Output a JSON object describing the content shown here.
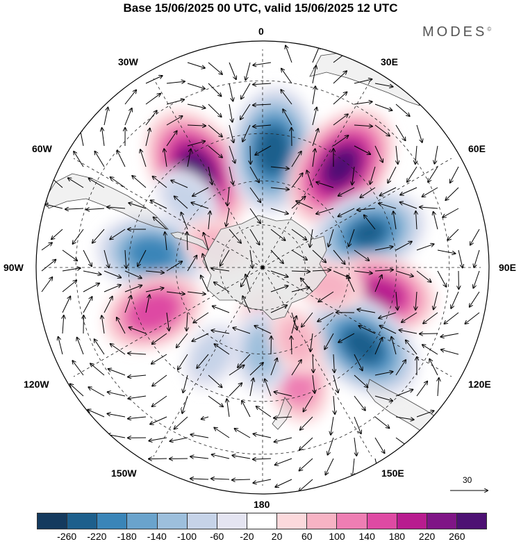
{
  "title": "Base 15/06/2025 00 UTC, valid 15/06/2025 12 UTC",
  "brand": "MODES",
  "brand_mark": "©",
  "longitude_labels": {
    "lon_0": "0",
    "lon_30e": "30E",
    "lon_60e": "60E",
    "lon_90e": "90E",
    "lon_120e": "120E",
    "lon_150e": "150E",
    "lon_180": "180",
    "lon_150w": "150W",
    "lon_120w": "120W",
    "lon_90w": "90W",
    "lon_60w": "60W",
    "lon_30w": "30W"
  },
  "reference_vector": "30",
  "colorbar": {
    "ticks": [
      "-260",
      "-220",
      "-180",
      "-140",
      "-100",
      "-60",
      "-20",
      "20",
      "60",
      "100",
      "140",
      "180",
      "220",
      "260"
    ],
    "colors": [
      "#143a5e",
      "#1d5f8c",
      "#3a85b8",
      "#6aa3cc",
      "#9dbfdc",
      "#c6d3e8",
      "#e4e4f1",
      "#ffffff",
      "#fcd9dc",
      "#f7b3c4",
      "#ee7eb3",
      "#de4aa3",
      "#b81c8f",
      "#7f1586",
      "#4d1173"
    ]
  },
  "projection": "south-polar-stereographic",
  "anomalies": [
    {
      "name": "high-30w",
      "lon": -34,
      "lat": -50,
      "value": 260
    },
    {
      "name": "low-0",
      "lon": 5,
      "lat": -50,
      "value": -250
    },
    {
      "name": "high-40e",
      "lon": 38,
      "lat": -47,
      "value": 260
    },
    {
      "name": "low-75e",
      "lon": 72,
      "lat": -52,
      "value": -220
    },
    {
      "name": "high-105e",
      "lon": 103,
      "lat": -49,
      "value": 200
    },
    {
      "name": "low-130e",
      "lon": 128,
      "lat": -47,
      "value": -240
    },
    {
      "name": "high-160e",
      "lon": 163,
      "lat": -50,
      "value": 120
    },
    {
      "name": "low-90w",
      "lon": -83,
      "lat": -52,
      "value": -200
    },
    {
      "name": "high-110w",
      "lon": -112,
      "lat": -50,
      "value": 170
    },
    {
      "name": "low-150w",
      "lon": -150,
      "lat": -55,
      "value": -60
    },
    {
      "name": "low-45w",
      "lon": -48,
      "lat": -55,
      "value": -60
    },
    {
      "name": "high-165e",
      "lon": 180,
      "lat": -70,
      "value": 60
    },
    {
      "name": "low-180",
      "lon": 180,
      "lat": -61,
      "value": -110
    },
    {
      "name": "high-150e-ant",
      "lon": 155,
      "lat": -62,
      "value": 60
    },
    {
      "name": "high-120e-ant",
      "lon": 105,
      "lat": -66,
      "value": 60
    },
    {
      "name": "high-60w-ant",
      "lon": -65,
      "lat": -72,
      "value": 60
    }
  ]
}
